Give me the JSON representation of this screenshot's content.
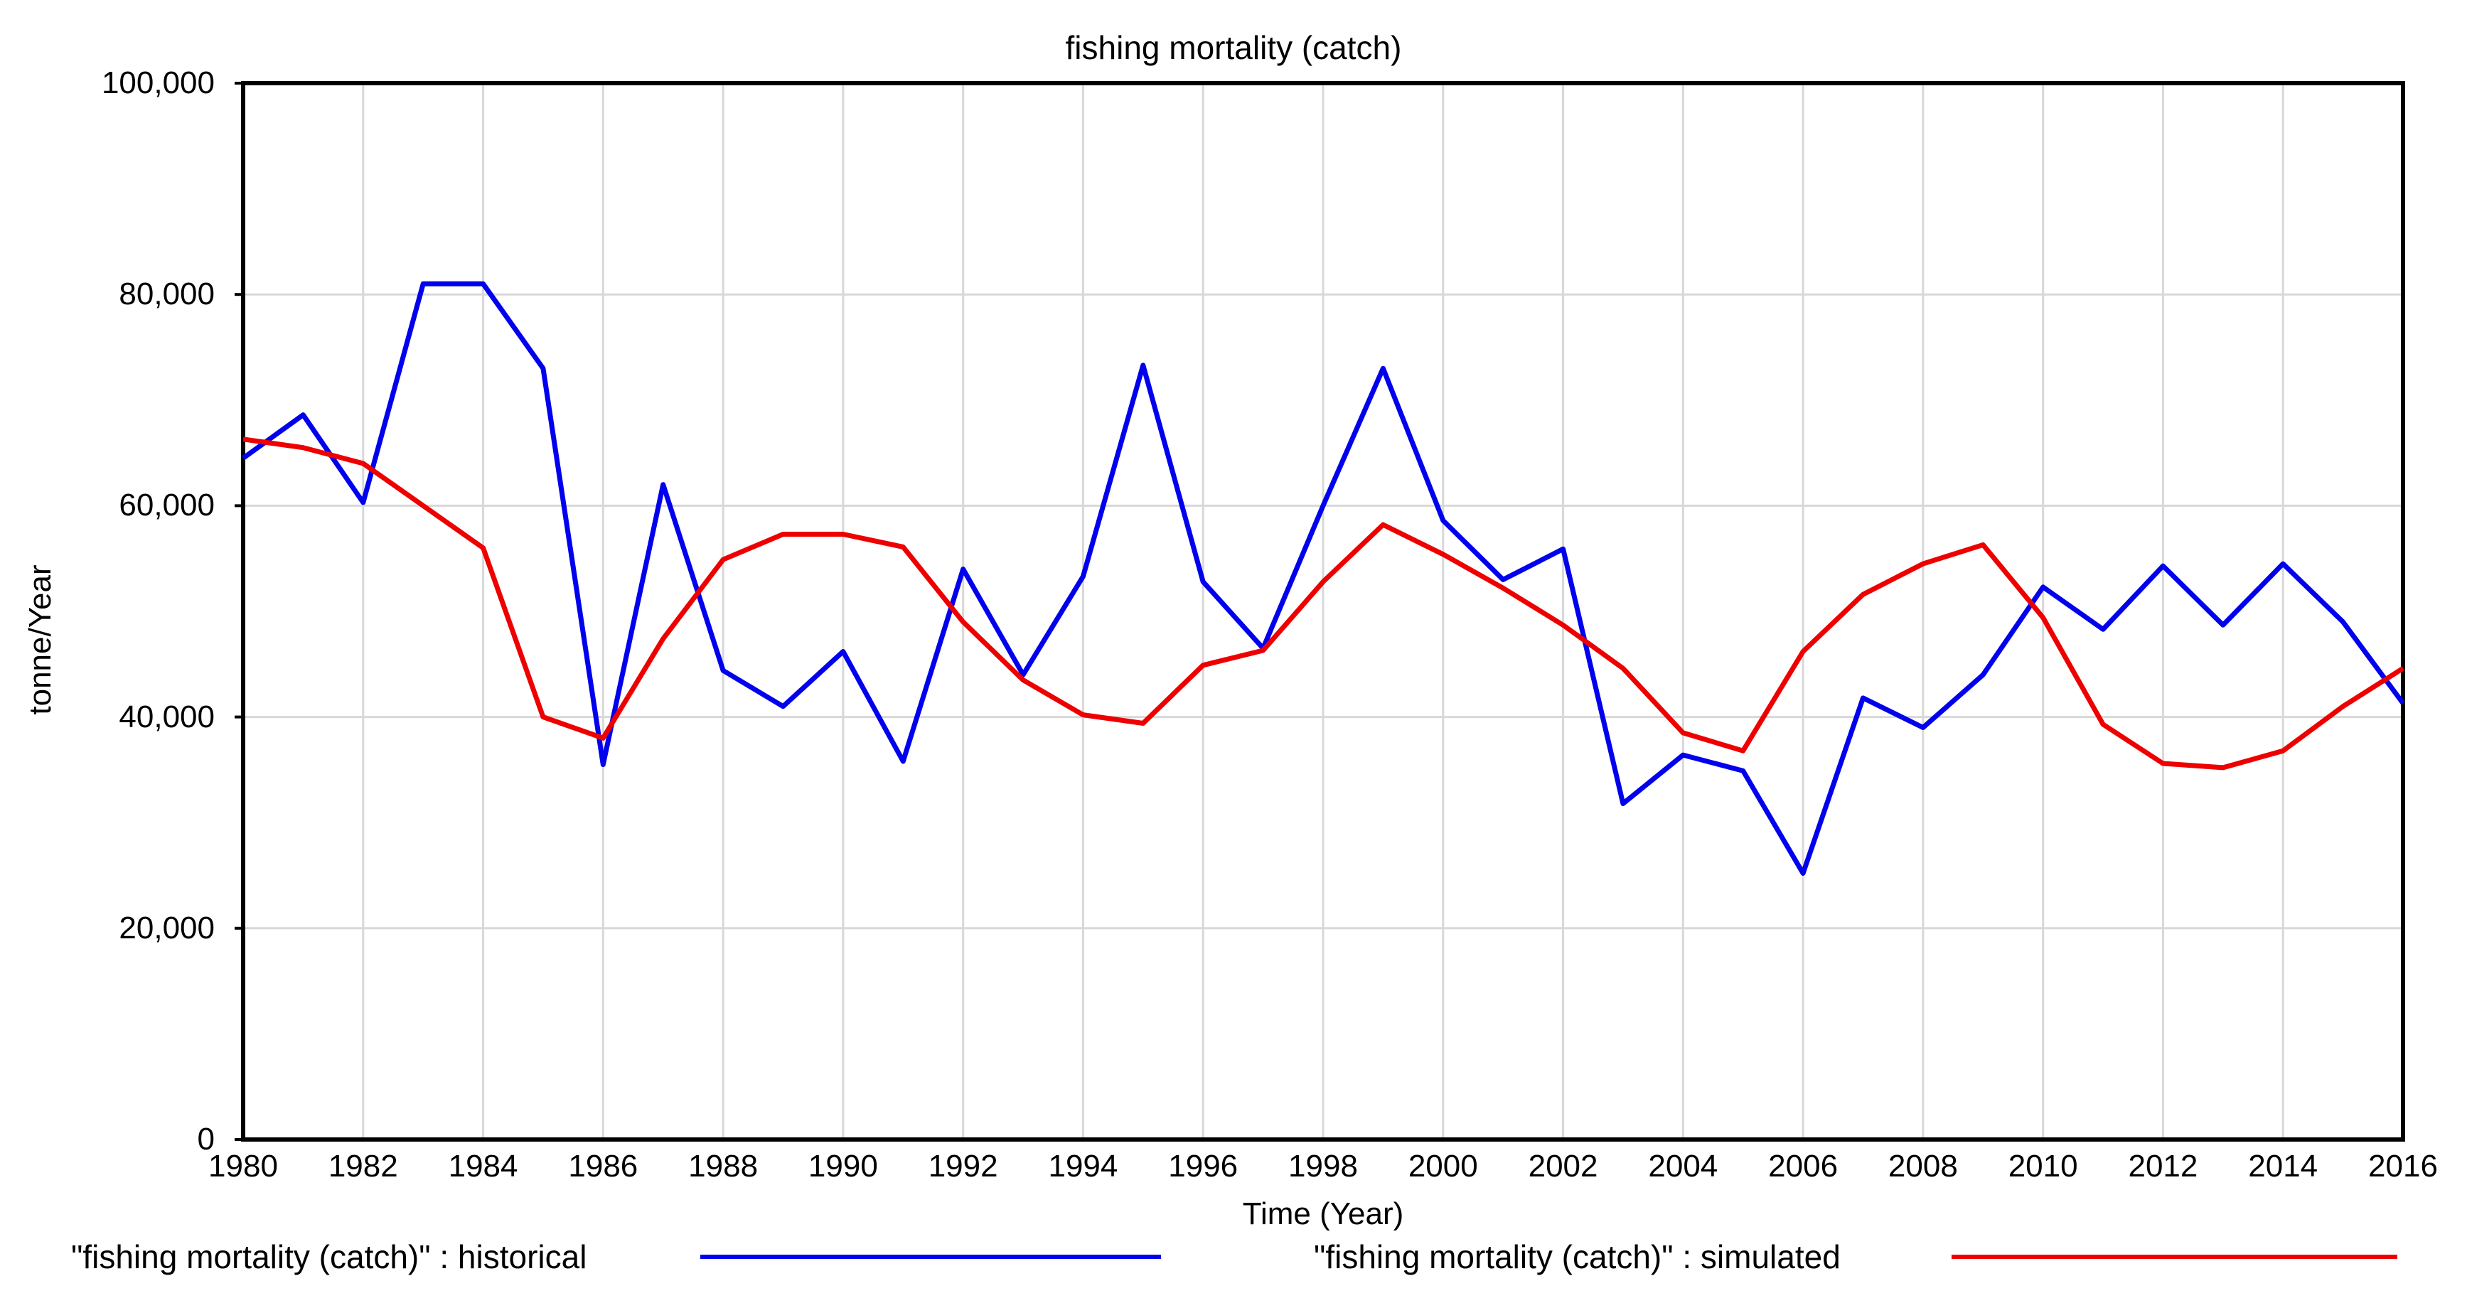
{
  "title": "fishing mortality (catch)",
  "axes": {
    "x_label": "Time (Year)",
    "y_label": "tonne/Year",
    "x_ticks": [
      {
        "label": "1980",
        "value": 1980
      },
      {
        "label": "1982",
        "value": 1982
      },
      {
        "label": "1984",
        "value": 1984
      },
      {
        "label": "1986",
        "value": 1986
      },
      {
        "label": "1988",
        "value": 1988
      },
      {
        "label": "1990",
        "value": 1990
      },
      {
        "label": "1992",
        "value": 1992
      },
      {
        "label": "1994",
        "value": 1994
      },
      {
        "label": "1996",
        "value": 1996
      },
      {
        "label": "1998",
        "value": 1998
      },
      {
        "label": "2000",
        "value": 2000
      },
      {
        "label": "2002",
        "value": 2002
      },
      {
        "label": "2004",
        "value": 2004
      },
      {
        "label": "2006",
        "value": 2006
      },
      {
        "label": "2008",
        "value": 2008
      },
      {
        "label": "2010",
        "value": 2010
      },
      {
        "label": "2012",
        "value": 2012
      },
      {
        "label": "2014",
        "value": 2014
      },
      {
        "label": "2016",
        "value": 2016
      }
    ],
    "y_ticks": [
      {
        "label": "100,000",
        "value": 100000
      },
      {
        "label": "80,000",
        "value": 80000
      },
      {
        "label": "60,000",
        "value": 60000
      },
      {
        "label": "40,000",
        "value": 40000
      },
      {
        "label": "20,000",
        "value": 20000
      },
      {
        "label": "0",
        "value": 0
      }
    ]
  },
  "legend": [
    {
      "label": "\"fishing mortality (catch)\" : historical",
      "color": "#0000ee"
    },
    {
      "label": "\"fishing mortality (catch)\" : simulated",
      "color": "#ee0000"
    }
  ],
  "chart_data": {
    "type": "line",
    "title": "fishing mortality (catch)",
    "xlabel": "Time (Year)",
    "ylabel": "tonne/Year",
    "xlim": [
      1980,
      2016
    ],
    "ylim": [
      0,
      100000
    ],
    "grid": true,
    "legend_position": "bottom",
    "x_gridline_step": 2,
    "y_gridlines": [
      20000,
      40000,
      60000,
      80000
    ],
    "x": [
      1980,
      1981,
      1982,
      1983,
      1984,
      1985,
      1986,
      1987,
      1988,
      1989,
      1990,
      1991,
      1992,
      1993,
      1994,
      1995,
      1996,
      1997,
      1998,
      1999,
      2000,
      2001,
      2002,
      2003,
      2004,
      2005,
      2006,
      2007,
      2008,
      2009,
      2010,
      2011,
      2012,
      2013,
      2014,
      2015,
      2016
    ],
    "series": [
      {
        "name": "\"fishing mortality (catch)\" : historical",
        "color": "#0000ee",
        "values": [
          64500,
          68600,
          60300,
          81000,
          81000,
          73000,
          35500,
          62000,
          44400,
          41000,
          46200,
          35800,
          54000,
          44000,
          53300,
          73300,
          52800,
          46500,
          60000,
          73000,
          58600,
          53000,
          55900,
          31800,
          36400,
          34900,
          25200,
          41800,
          39000,
          44000,
          52300,
          48300,
          54300,
          48700,
          54500,
          49000,
          41300
        ]
      },
      {
        "name": "\"fishing mortality (catch)\" : simulated",
        "color": "#ee0000",
        "values": [
          66300,
          65500,
          64000,
          60000,
          56000,
          40000,
          38000,
          47400,
          54900,
          57300,
          57300,
          56100,
          49000,
          43500,
          40200,
          39400,
          44900,
          46300,
          52800,
          58200,
          55400,
          52200,
          48700,
          44600,
          38500,
          36800,
          46200,
          51600,
          54500,
          56300,
          49400,
          39300,
          35600,
          35200,
          36800,
          41000,
          44600
        ]
      }
    ],
    "colors": {
      "frame": "#000000",
      "gridline": "#d8d8d8",
      "background": "#ffffff"
    }
  }
}
